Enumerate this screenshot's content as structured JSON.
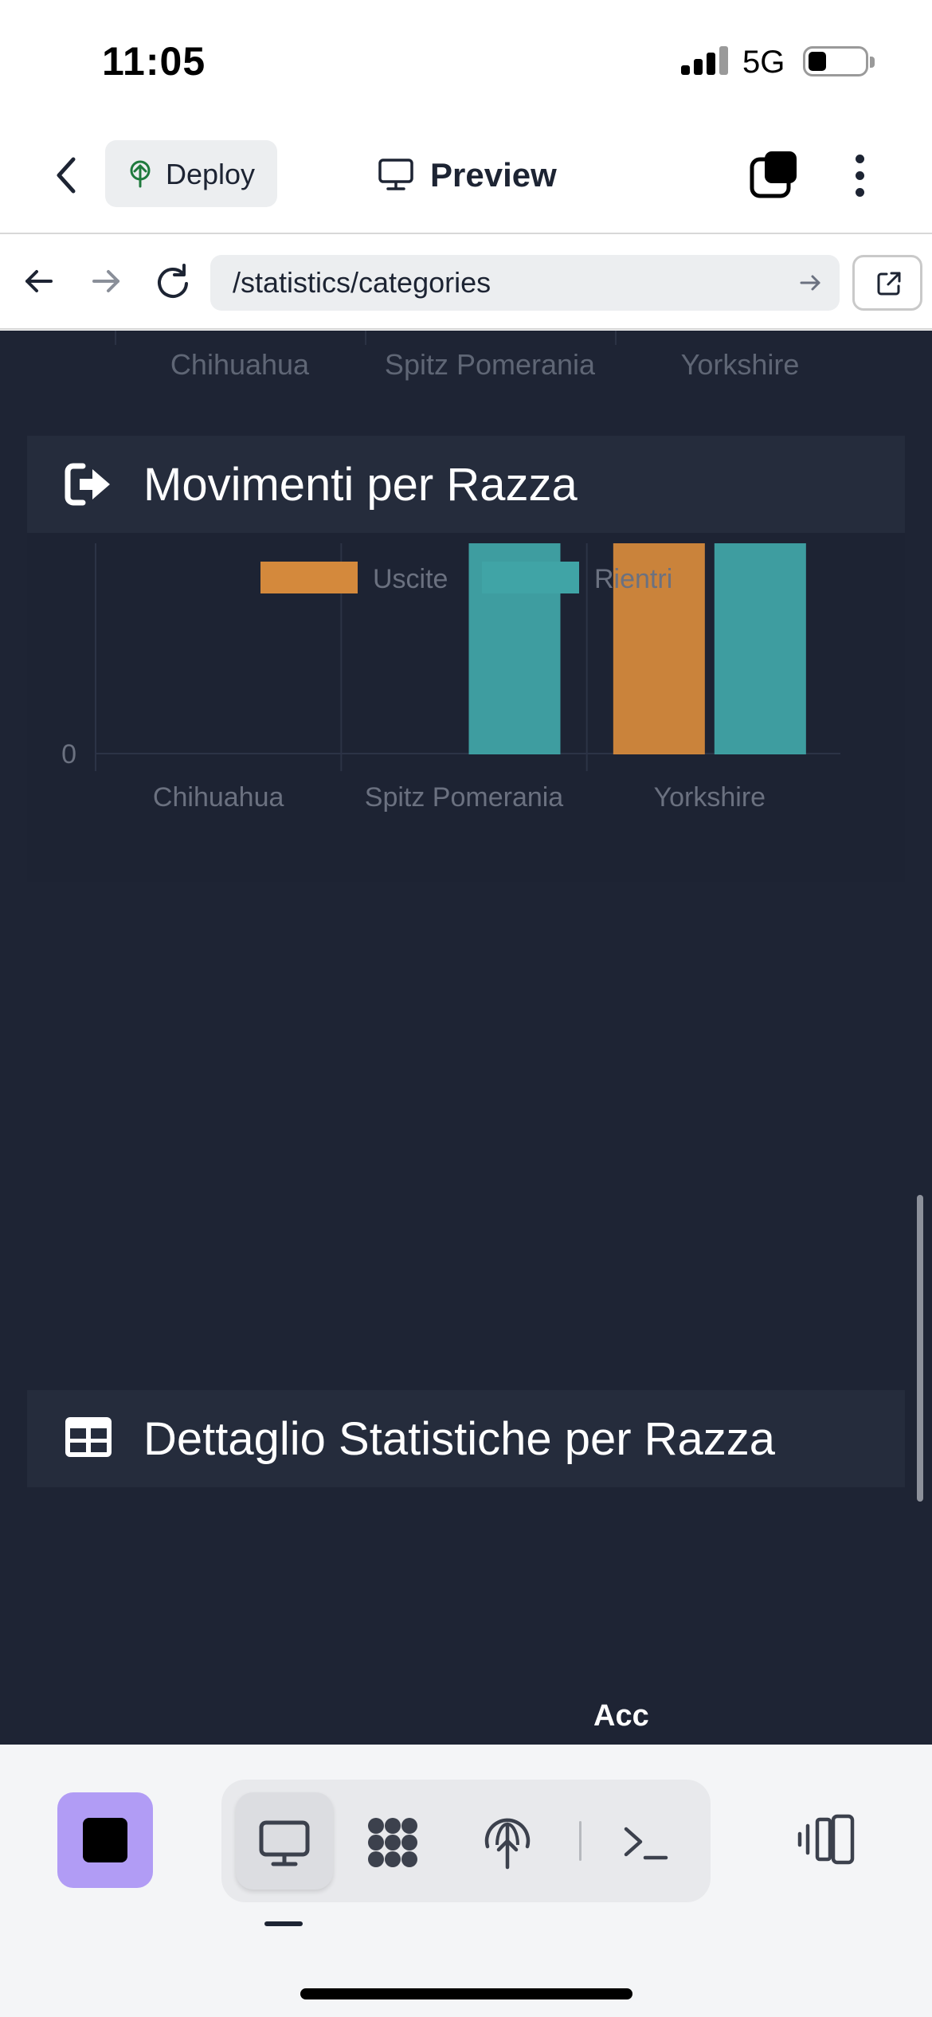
{
  "status_bar": {
    "time": "11:05",
    "network": "5G",
    "signal_bars": 4,
    "battery_level_pct": 25
  },
  "header": {
    "deploy_label": "Deploy",
    "preview_label": "Preview"
  },
  "url_bar": {
    "url": "/statistics/categories"
  },
  "previous_chart": {
    "x_ticks": [
      "Chihuahua",
      "Spitz Pomerania",
      "Yorkshire"
    ]
  },
  "movements_card": {
    "title": "Movimenti per Razza",
    "icon": "sign-out-icon"
  },
  "details_card": {
    "title": "Dettaglio Statistiche per Razza",
    "icon": "table-icon"
  },
  "acc_text": "Acc",
  "colors": {
    "uscite": "#d4893c",
    "rientri": "#40a4a6",
    "background": "#1e2434",
    "accent_button": "#b19cf5"
  },
  "chart_data": {
    "type": "bar",
    "title": "",
    "categories": [
      "Chihuahua",
      "Spitz Pomerania",
      "Yorkshire"
    ],
    "series": [
      {
        "name": "Uscite",
        "values": [
          0,
          0,
          1
        ],
        "color": "#d4893c"
      },
      {
        "name": "Rientri",
        "values": [
          0,
          1,
          1
        ],
        "color": "#40a4a6"
      }
    ],
    "ylim": [
      0,
      1
    ],
    "y_ticks": [
      "0",
      "1"
    ],
    "legend_position": "top",
    "grid": true
  },
  "toolbar": {
    "items": [
      "monitor-icon",
      "apps-icon",
      "deploy-icon",
      "terminal-icon"
    ],
    "active": "monitor-icon"
  }
}
